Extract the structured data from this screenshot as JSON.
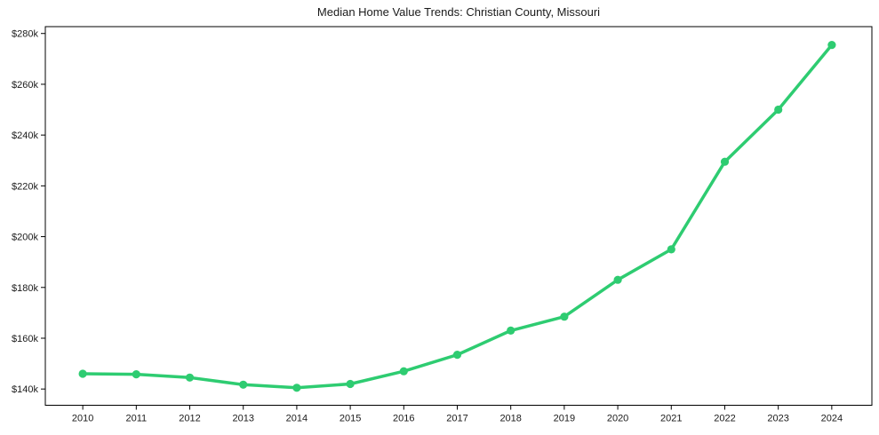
{
  "page": {
    "background_color": "#ffffff"
  },
  "chart_data": {
    "type": "line",
    "title": "Median Home Value Trends: Christian County, Missouri",
    "series_name": "Median Home Value",
    "x": [
      2010,
      2011,
      2012,
      2013,
      2014,
      2015,
      2016,
      2017,
      2018,
      2019,
      2020,
      2021,
      2022,
      2023,
      2024
    ],
    "values": [
      146000,
      145800,
      144500,
      141700,
      140500,
      142000,
      147000,
      153500,
      163000,
      168500,
      183000,
      195000,
      229500,
      250000,
      275500
    ],
    "xtick_labels": [
      "2010",
      "2011",
      "2012",
      "2013",
      "2014",
      "2015",
      "2016",
      "2017",
      "2018",
      "2019",
      "2020",
      "2021",
      "2022",
      "2023",
      "2024"
    ],
    "yticks": [
      140000,
      160000,
      180000,
      200000,
      220000,
      240000,
      260000,
      280000
    ],
    "ytick_labels": [
      "$140k",
      "$160k",
      "$180k",
      "$200k",
      "$220k",
      "$240k",
      "$260k",
      "$280k"
    ],
    "xlim": [
      2009.3,
      2024.75
    ],
    "ylim": [
      133600,
      282700
    ],
    "line_color": "#2ecc71",
    "marker": "circle",
    "marker_color": "#2ecc71",
    "axis_color": "#000000",
    "label_color": "#1a1a1a",
    "grid": false,
    "legend_position": "none"
  }
}
